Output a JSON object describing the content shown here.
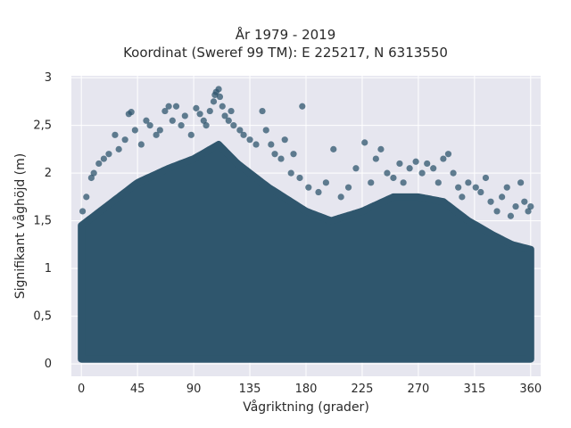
{
  "chart_data": {
    "type": "scatter",
    "title": "År 1979 - 2019",
    "subtitle": "Koordinat (Sweref 99 TM): E 225217, N 6313550",
    "xlabel": "Vågriktning (grader)",
    "ylabel": "Signifikant våghöjd (m)",
    "xlim": [
      -8,
      368
    ],
    "ylim": [
      -0.13,
      3.02
    ],
    "x_ticks": [
      0,
      45,
      90,
      135,
      180,
      225,
      270,
      315,
      360
    ],
    "x_tick_labels": [
      "0",
      "45",
      "90",
      "135",
      "180",
      "225",
      "270",
      "315",
      "360"
    ],
    "y_ticks": [
      0,
      0.5,
      1,
      1.5,
      2,
      2.5,
      3
    ],
    "y_tick_labels": [
      "0",
      "0,5",
      "1",
      "1,5",
      "2",
      "2,5",
      "3"
    ],
    "grid": true,
    "background_color": "#e6e6ef",
    "marker_color": "#2f566d",
    "dense_lower_envelope": [
      [
        0,
        0.05
      ],
      [
        360,
        0.05
      ]
    ],
    "dense_upper_envelope": [
      [
        0,
        1.45
      ],
      [
        20,
        1.65
      ],
      [
        45,
        1.9
      ],
      [
        70,
        2.05
      ],
      [
        90,
        2.15
      ],
      [
        110,
        2.3
      ],
      [
        125,
        2.1
      ],
      [
        150,
        1.85
      ],
      [
        180,
        1.6
      ],
      [
        200,
        1.5
      ],
      [
        225,
        1.6
      ],
      [
        250,
        1.75
      ],
      [
        270,
        1.75
      ],
      [
        290,
        1.7
      ],
      [
        310,
        1.5
      ],
      [
        330,
        1.35
      ],
      [
        345,
        1.25
      ],
      [
        360,
        1.2
      ]
    ],
    "outliers": [
      [
        1,
        1.6
      ],
      [
        4,
        1.75
      ],
      [
        8,
        1.95
      ],
      [
        10,
        2.0
      ],
      [
        14,
        2.1
      ],
      [
        18,
        2.15
      ],
      [
        22,
        2.2
      ],
      [
        27,
        2.4
      ],
      [
        30,
        2.25
      ],
      [
        35,
        2.35
      ],
      [
        38,
        2.62
      ],
      [
        40,
        2.64
      ],
      [
        43,
        2.45
      ],
      [
        48,
        2.3
      ],
      [
        52,
        2.55
      ],
      [
        55,
        2.5
      ],
      [
        60,
        2.4
      ],
      [
        63,
        2.45
      ],
      [
        67,
        2.65
      ],
      [
        70,
        2.7
      ],
      [
        73,
        2.55
      ],
      [
        76,
        2.7
      ],
      [
        80,
        2.5
      ],
      [
        83,
        2.6
      ],
      [
        88,
        2.4
      ],
      [
        92,
        2.68
      ],
      [
        95,
        2.62
      ],
      [
        98,
        2.55
      ],
      [
        100,
        2.5
      ],
      [
        103,
        2.65
      ],
      [
        106,
        2.75
      ],
      [
        107,
        2.82
      ],
      [
        108,
        2.85
      ],
      [
        110,
        2.88
      ],
      [
        111,
        2.8
      ],
      [
        113,
        2.7
      ],
      [
        115,
        2.6
      ],
      [
        118,
        2.55
      ],
      [
        120,
        2.65
      ],
      [
        122,
        2.5
      ],
      [
        127,
        2.45
      ],
      [
        130,
        2.4
      ],
      [
        135,
        2.35
      ],
      [
        140,
        2.3
      ],
      [
        145,
        2.65
      ],
      [
        148,
        2.45
      ],
      [
        152,
        2.3
      ],
      [
        155,
        2.2
      ],
      [
        160,
        2.15
      ],
      [
        163,
        2.35
      ],
      [
        168,
        2.0
      ],
      [
        170,
        2.2
      ],
      [
        175,
        1.95
      ],
      [
        177,
        2.7
      ],
      [
        182,
        1.85
      ],
      [
        190,
        1.8
      ],
      [
        196,
        1.9
      ],
      [
        202,
        2.25
      ],
      [
        208,
        1.75
      ],
      [
        214,
        1.85
      ],
      [
        220,
        2.05
      ],
      [
        227,
        2.32
      ],
      [
        232,
        1.9
      ],
      [
        236,
        2.15
      ],
      [
        240,
        2.25
      ],
      [
        245,
        2.0
      ],
      [
        250,
        1.95
      ],
      [
        255,
        2.1
      ],
      [
        258,
        1.9
      ],
      [
        263,
        2.05
      ],
      [
        268,
        2.12
      ],
      [
        273,
        2.0
      ],
      [
        277,
        2.1
      ],
      [
        282,
        2.05
      ],
      [
        286,
        1.9
      ],
      [
        290,
        2.15
      ],
      [
        294,
        2.2
      ],
      [
        298,
        2.0
      ],
      [
        302,
        1.85
      ],
      [
        305,
        1.75
      ],
      [
        310,
        1.9
      ],
      [
        316,
        1.85
      ],
      [
        320,
        1.8
      ],
      [
        324,
        1.95
      ],
      [
        328,
        1.7
      ],
      [
        333,
        1.6
      ],
      [
        337,
        1.75
      ],
      [
        341,
        1.85
      ],
      [
        344,
        1.55
      ],
      [
        348,
        1.65
      ],
      [
        352,
        1.9
      ],
      [
        355,
        1.7
      ],
      [
        358,
        1.6
      ],
      [
        360,
        1.65
      ]
    ]
  }
}
